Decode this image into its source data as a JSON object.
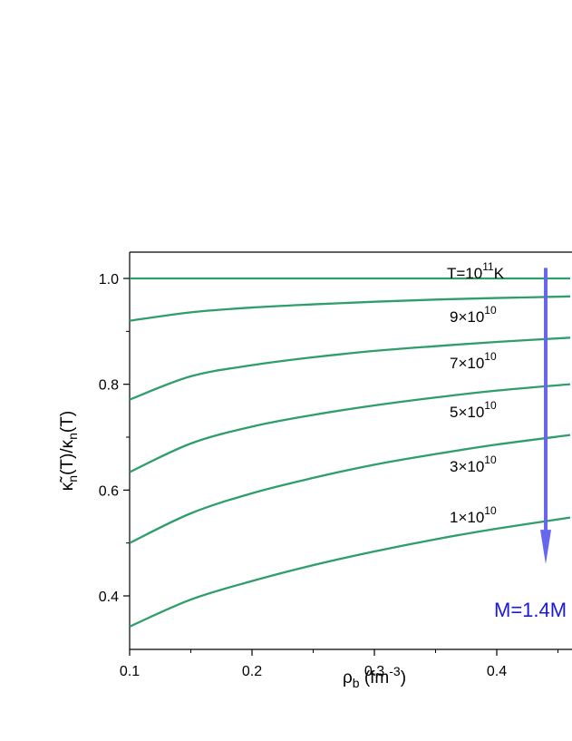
{
  "chart_data": {
    "type": "line",
    "xlim": [
      0.1,
      0.46
    ],
    "ylim": [
      0.3,
      1.05
    ],
    "x_ticks": [
      "0.1",
      "0.2",
      "0.3",
      "0.4"
    ],
    "y_ticks": [
      "0.4",
      "0.6",
      "0.8",
      "1.0"
    ],
    "xlabel": {
      "main": "ρ",
      "sub": "b",
      "rest": " (fm",
      "sup": "-3",
      "end": ")"
    },
    "ylabel": {
      "a": "κ̃",
      "a_sub": "n",
      "b": "(T)/κ",
      "b_sub": "n",
      "c": "(T)"
    },
    "series": [
      {
        "label_base": "T=10",
        "label_sup": "11",
        "label_end": "K",
        "x": [
          0.1,
          0.15,
          0.2,
          0.25,
          0.3,
          0.35,
          0.4,
          0.46
        ],
        "y": [
          1.0,
          1.0,
          1.0,
          1.0,
          1.0,
          1.0,
          1.0,
          1.0
        ]
      },
      {
        "label_base": "9×10",
        "label_sup": "10",
        "label_end": "",
        "x": [
          0.1,
          0.15,
          0.2,
          0.25,
          0.3,
          0.35,
          0.4,
          0.46
        ],
        "y": [
          0.92,
          0.936,
          0.945,
          0.951,
          0.956,
          0.96,
          0.963,
          0.966
        ]
      },
      {
        "label_base": "7×10",
        "label_sup": "10",
        "label_end": "",
        "x": [
          0.1,
          0.15,
          0.2,
          0.25,
          0.3,
          0.35,
          0.4,
          0.46
        ],
        "y": [
          0.771,
          0.815,
          0.836,
          0.851,
          0.863,
          0.872,
          0.88,
          0.888
        ]
      },
      {
        "label_base": "5×10",
        "label_sup": "10",
        "label_end": "",
        "x": [
          0.1,
          0.15,
          0.2,
          0.25,
          0.3,
          0.35,
          0.4,
          0.46
        ],
        "y": [
          0.634,
          0.688,
          0.72,
          0.742,
          0.76,
          0.775,
          0.788,
          0.8
        ]
      },
      {
        "label_base": "3×10",
        "label_sup": "10",
        "label_end": "",
        "x": [
          0.1,
          0.15,
          0.2,
          0.25,
          0.3,
          0.35,
          0.4,
          0.46
        ],
        "y": [
          0.5,
          0.556,
          0.594,
          0.623,
          0.648,
          0.668,
          0.686,
          0.704
        ]
      },
      {
        "label_base": "1×10",
        "label_sup": "10",
        "label_end": "",
        "x": [
          0.1,
          0.15,
          0.2,
          0.25,
          0.3,
          0.35,
          0.4,
          0.46
        ],
        "y": [
          0.342,
          0.393,
          0.428,
          0.458,
          0.484,
          0.507,
          0.527,
          0.548
        ]
      }
    ],
    "annotation": {
      "text": "M=1.4M",
      "color": "#1a1ad4"
    },
    "arrow": {
      "x": 0.44,
      "y_from": 1.02,
      "y_to": 0.47,
      "color": "#6666ee"
    },
    "line_color": "#2e9e6a",
    "grid": false
  }
}
